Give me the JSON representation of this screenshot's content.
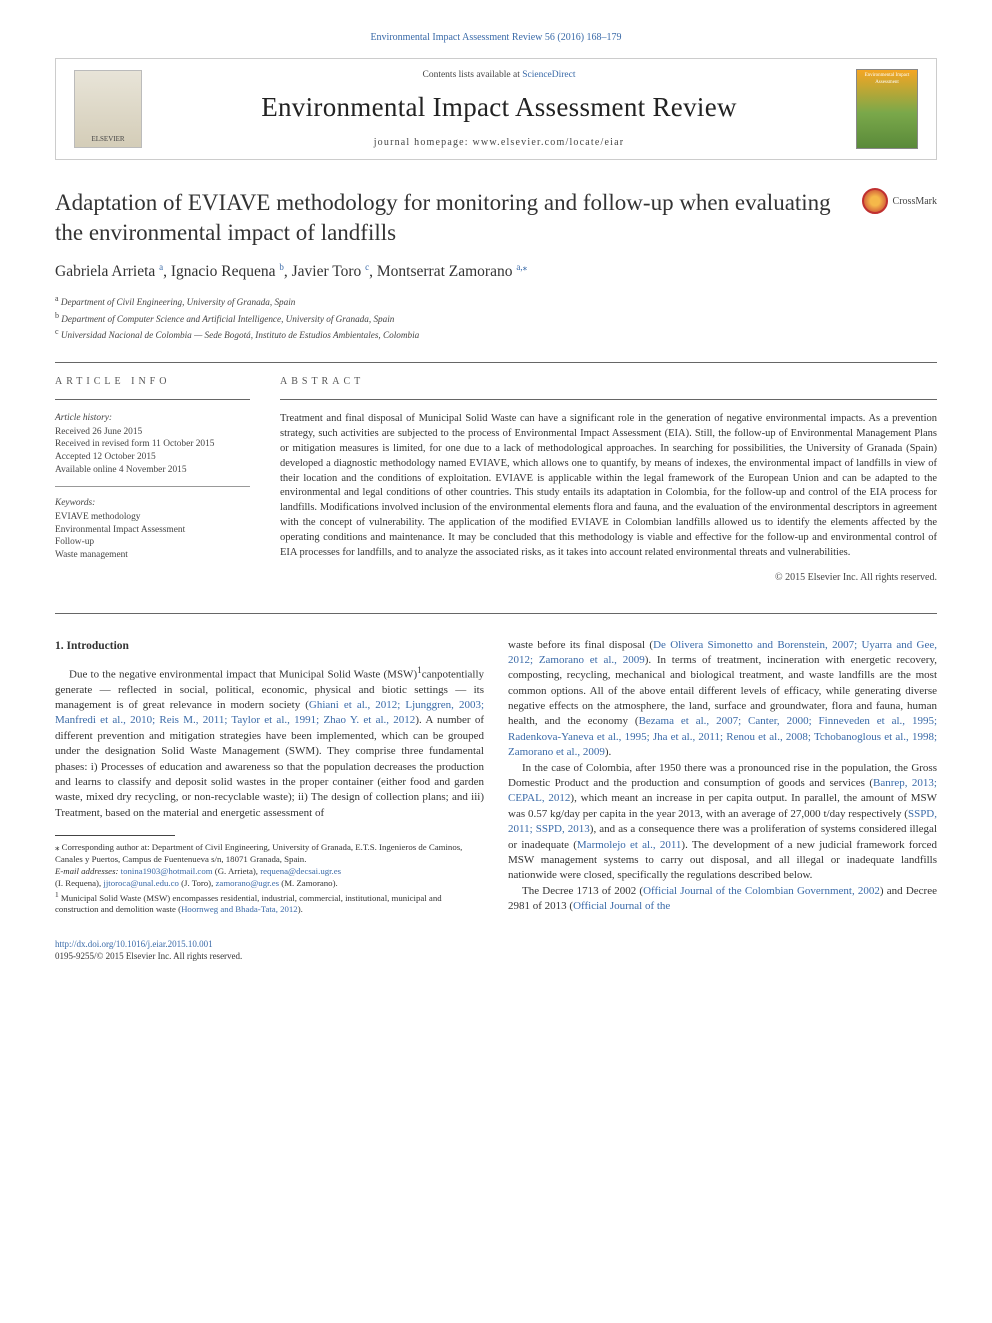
{
  "top_link": "Environmental Impact Assessment Review 56 (2016) 168–179",
  "header": {
    "elsevier_label": "ELSEVIER",
    "contents_prefix": "Contents lists available at ",
    "contents_link": "ScienceDirect",
    "journal_name": "Environmental Impact Assessment Review",
    "homepage_prefix": "journal homepage: ",
    "homepage_url": "www.elsevier.com/locate/eiar",
    "cover_label": "Environmental Impact Assessment"
  },
  "title": "Adaptation of EVIAVE methodology for monitoring and follow-up when evaluating the environmental impact of landfills",
  "crossmark": "CrossMark",
  "authors": {
    "a1_name": "Gabriela Arrieta ",
    "a1_sup": "a",
    "a2_name": ", Ignacio Requena ",
    "a2_sup": "b",
    "a3_name": ", Javier Toro ",
    "a3_sup": "c",
    "a4_name": ", Montserrat Zamorano ",
    "a4_sup": "a,",
    "a4_star": "⁎"
  },
  "affiliations": {
    "a_sup": "a",
    "a_text": " Department of Civil Engineering, University of Granada, Spain",
    "b_sup": "b",
    "b_text": " Department of Computer Science and Artificial Intelligence, University of Granada, Spain",
    "c_sup": "c",
    "c_text": " Universidad Nacional de Colombia — Sede Bogotá, Instituto de Estudios Ambientales, Colombia"
  },
  "info_label": "article info",
  "abstract_label": "abstract",
  "history": {
    "heading": "Article history:",
    "l1": "Received 26 June 2015",
    "l2": "Received in revised form 11 October 2015",
    "l3": "Accepted 12 October 2015",
    "l4": "Available online 4 November 2015"
  },
  "keywords": {
    "heading": "Keywords:",
    "k1": "EVIAVE methodology",
    "k2": "Environmental Impact Assessment",
    "k3": "Follow-up",
    "k4": "Waste management"
  },
  "abstract_text": "Treatment and final disposal of Municipal Solid Waste can have a significant role in the generation of negative environmental impacts. As a prevention strategy, such activities are subjected to the process of Environmental Impact Assessment (EIA). Still, the follow-up of Environmental Management Plans or mitigation measures is limited, for one due to a lack of methodological approaches. In searching for possibilities, the University of Granada (Spain) developed a diagnostic methodology named EVIAVE, which allows one to quantify, by means of indexes, the environmental impact of landfills in view of their location and the conditions of exploitation. EVIAVE is applicable within the legal framework of the European Union and can be adapted to the environmental and legal conditions of other countries. This study entails its adaptation in Colombia, for the follow-up and control of the EIA process for landfills. Modifications involved inclusion of the environmental elements flora and fauna, and the evaluation of the environmental descriptors in agreement with the concept of vulnerability. The application of the modified EVIAVE in Colombian landfills allowed us to identify the elements affected by the operating conditions and maintenance. It may be concluded that this methodology is viable and effective for the follow-up and environmental control of EIA processes for landfills, and to analyze the associated risks, as it takes into account related environmental threats and vulnerabilities.",
  "copyright": "© 2015 Elsevier Inc. All rights reserved.",
  "intro": {
    "heading": "1. Introduction",
    "p1_a": "Due to the negative environmental impact that Municipal Solid Waste (MSW)",
    "p1_sup": "1",
    "p1_b": "canpotentially generate — reflected in social, political, economic, physical and biotic settings — its management is of great relevance in modern society (",
    "p1_cite1": "Ghiani et al., 2012; Ljunggren, 2003; Manfredi et al., 2010; Reis M., 2011; Taylor et al., 1991; Zhao Y. et al., 2012",
    "p1_c": "). A number of different prevention and mitigation strategies have been implemented, which can be grouped under the designation Solid Waste Management (SWM). They comprise three fundamental phases: i) Processes of education and awareness so that the population decreases the production and learns to classify and deposit solid wastes in the proper container (either food and garden waste, mixed dry recycling, or non-recyclable waste); ii) The design of collection plans; and iii) Treatment, based on the material and energetic assessment of",
    "p2_a": "waste before its final disposal (",
    "p2_cite1": "De Olivera Simonetto and Borenstein, 2007; Uyarra and Gee, 2012; Zamorano et al., 2009",
    "p2_b": "). In terms of treatment, incineration with energetic recovery, composting, recycling, mechanical and biological treatment, and waste landfills are the most common options. All of the above entail different levels of efficacy, while generating diverse negative effects on the atmosphere, the land, surface and groundwater, flora and fauna, human health, and the economy (",
    "p2_cite2": "Bezama et al., 2007; Canter, 2000; Finneveden et al., 1995; Radenkova-Yaneva et al., 1995; Jha et al., 2011; Renou et al., 2008; Tchobanoglous et al., 1998; Zamorano et al., 2009",
    "p2_c": ").",
    "p3_a": "In the case of Colombia, after 1950 there was a pronounced rise in the population, the Gross Domestic Product and the production and consumption of goods and services (",
    "p3_cite1": "Banrep, 2013; CEPAL, 2012",
    "p3_b": "), which meant an increase in per capita output. In parallel, the amount of MSW was 0.57 kg/day per capita in the year 2013, with an average of 27,000 t/day respectively (",
    "p3_cite2": "SSPD, 2011; SSPD, 2013",
    "p3_c": "), and as a consequence there was a proliferation of systems considered illegal or inadequate (",
    "p3_cite3": "Marmolejo et al., 2011",
    "p3_d": "). The development of a new judicial framework forced MSW management systems to carry out disposal, and all illegal or inadequate landfills nationwide were closed, specifically the regulations described below.",
    "p4_a": "The Decree 1713 of 2002 (",
    "p4_cite1": "Official Journal of the Colombian Government, 2002",
    "p4_b": ") and Decree 2981 of 2013 (",
    "p4_cite2": "Official Journal of the"
  },
  "footnotes": {
    "star": "⁎",
    "corr": " Corresponding author at: Department of Civil Engineering, University of Granada, E.T.S. Ingenieros de Caminos, Canales y Puertos, Campus de Fuentenueva s/n, 18071 Granada, Spain.",
    "email_label": "E-mail addresses: ",
    "e1": "tonina1903@hotmail.com",
    "e1_who": " (G. Arrieta), ",
    "e2": "requena@decsai.ugr.es",
    "e2_who": " (I. Requena), ",
    "e3": "jjtoroca@unal.edu.co",
    "e3_who": " (J. Toro), ",
    "e4": "zamorano@ugr.es",
    "e4_who": " (M. Zamorano).",
    "n1_sup": "1",
    "n1": " Municipal Solid Waste (MSW) encompasses residential, industrial, commercial, institutional, municipal and construction and demolition waste (",
    "n1_cite": "Hoornweg and Bhada-Tata, 2012",
    "n1_end": ")."
  },
  "footer": {
    "doi": "http://dx.doi.org/10.1016/j.eiar.2015.10.001",
    "issn": "0195-9255/© 2015 Elsevier Inc. All rights reserved."
  },
  "colors": {
    "link": "#3a6aa8",
    "text": "#333333",
    "rule": "#666666"
  }
}
